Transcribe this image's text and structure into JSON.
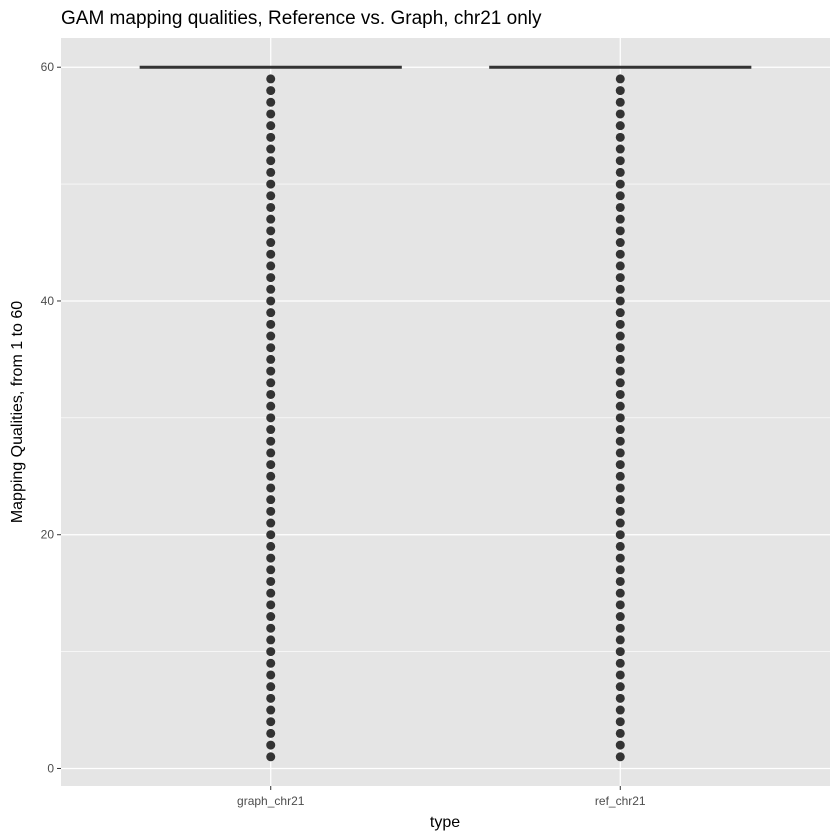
{
  "chart_data": {
    "type": "boxplot",
    "title": "GAM mapping qualities, Reference vs. Graph, chr21 only",
    "xlabel": "type",
    "ylabel": "Mapping Qualities, from 1 to 60",
    "categories": [
      "graph_chr21",
      "ref_chr21"
    ],
    "ylim": [
      -1.5,
      62.5
    ],
    "yticks": [
      0,
      20,
      40,
      60
    ],
    "grid": true,
    "background": "#e5e5e5",
    "gridline_color": "#ffffff",
    "box_color": "#333333",
    "outlier_color": "#333333",
    "boxes": [
      {
        "category": "graph_chr21",
        "median": 60,
        "q1": 60,
        "q3": 60,
        "whisker_low": 60,
        "whisker_high": 60,
        "outliers": [
          1,
          2,
          3,
          4,
          5,
          6,
          7,
          8,
          9,
          10,
          11,
          12,
          13,
          14,
          15,
          16,
          17,
          18,
          19,
          20,
          21,
          22,
          23,
          24,
          25,
          26,
          27,
          28,
          29,
          30,
          31,
          32,
          33,
          34,
          35,
          36,
          37,
          38,
          39,
          40,
          41,
          42,
          43,
          44,
          45,
          46,
          47,
          48,
          49,
          50,
          51,
          52,
          53,
          54,
          55,
          56,
          57,
          58,
          59
        ]
      },
      {
        "category": "ref_chr21",
        "median": 60,
        "q1": 60,
        "q3": 60,
        "whisker_low": 60,
        "whisker_high": 60,
        "outliers": [
          1,
          2,
          3,
          4,
          5,
          6,
          7,
          8,
          9,
          10,
          11,
          12,
          13,
          14,
          15,
          16,
          17,
          18,
          19,
          20,
          21,
          22,
          23,
          24,
          25,
          26,
          27,
          28,
          29,
          30,
          31,
          32,
          33,
          34,
          35,
          36,
          37,
          38,
          39,
          40,
          41,
          42,
          43,
          44,
          45,
          46,
          47,
          48,
          49,
          50,
          51,
          52,
          53,
          54,
          55,
          56,
          57,
          58,
          59
        ]
      }
    ]
  }
}
